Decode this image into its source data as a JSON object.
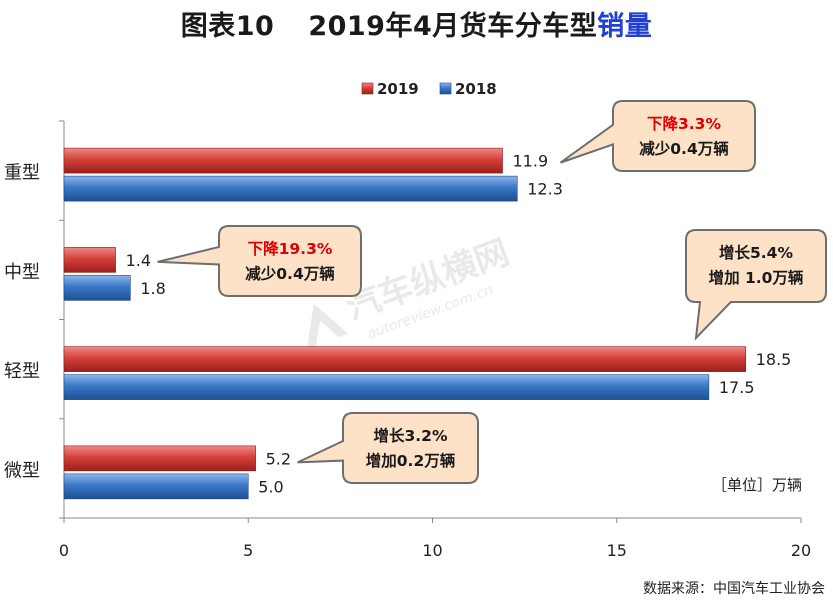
{
  "title": {
    "prefix": "图表10",
    "main": "2019年4月货车分车型",
    "highlight": "销量"
  },
  "unit_label": "［单位］万辆",
  "source": "数据来源：中国汽车工业协会",
  "watermark": {
    "text_cn": "汽车纵横网",
    "text_en": "autoreview.com.cn"
  },
  "colors": {
    "s2019": "#c8302b",
    "s2018": "#2f6fbf",
    "callout_fill": "#fde2c8",
    "callout_stroke": "#6e6e6e",
    "red_text": "#e00000"
  },
  "chart_data": {
    "type": "bar",
    "orientation": "horizontal",
    "categories": [
      "重型",
      "中型",
      "轻型",
      "微型"
    ],
    "series": [
      {
        "name": "2019",
        "values": [
          11.9,
          1.4,
          18.5,
          5.2
        ]
      },
      {
        "name": "2018",
        "values": [
          12.3,
          1.8,
          17.5,
          5.0
        ]
      }
    ],
    "xlim": [
      0,
      20
    ],
    "xticks": [
      "0",
      "5",
      "10",
      "15",
      "20"
    ],
    "legend_position": "top",
    "grid": false,
    "annotations": [
      {
        "category": "重型",
        "line1": "下降3.3%",
        "line2": "减少0.4万辆",
        "line1_red": true
      },
      {
        "category": "中型",
        "line1": "下降19.3%",
        "line2": "减少0.4万辆",
        "line1_red": true
      },
      {
        "category": "轻型",
        "line1": "增长5.4%",
        "line2": "增加 1.0万辆",
        "line1_red": false
      },
      {
        "category": "微型",
        "line1": "增长3.2%",
        "line2": "增加0.2万辆",
        "line1_red": false
      }
    ]
  }
}
